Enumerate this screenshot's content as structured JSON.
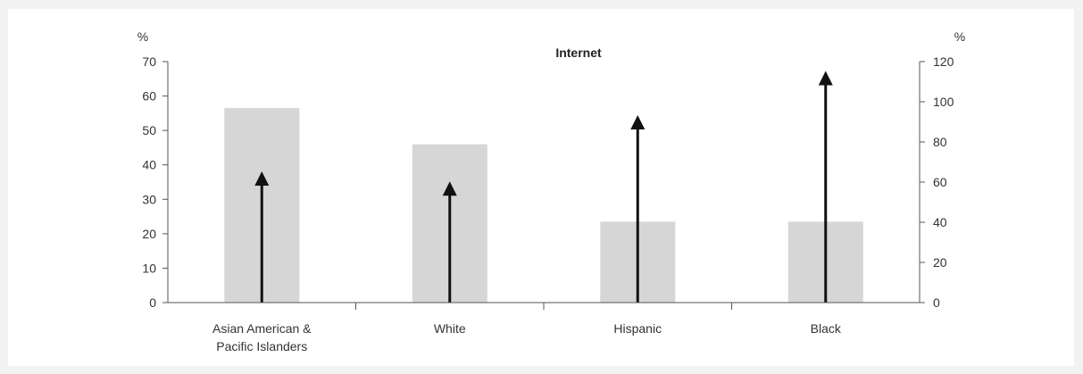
{
  "chart_data": {
    "type": "bar",
    "title": "Internet",
    "categories": [
      [
        "Asian American &",
        "Pacific Islanders"
      ],
      [
        "White"
      ],
      [
        "Hispanic"
      ],
      [
        "Black"
      ]
    ],
    "series": [
      {
        "kind": "bar",
        "axis": "left",
        "color": "#d6d6d6",
        "values": [
          56.5,
          46,
          23.5,
          23.5
        ]
      },
      {
        "kind": "arrow",
        "axis": "right",
        "color": "#111111",
        "values": [
          60,
          55,
          88,
          110
        ]
      }
    ],
    "ylabel_left": "%",
    "ylabel_right": "%",
    "ylim_left": [
      0,
      70
    ],
    "ylim_right": [
      0,
      120
    ],
    "yticks_left": [
      0,
      10,
      20,
      30,
      40,
      50,
      60,
      70
    ],
    "yticks_right": [
      0,
      20,
      40,
      60,
      80,
      100,
      120
    ],
    "grid": false,
    "legend": "none"
  }
}
